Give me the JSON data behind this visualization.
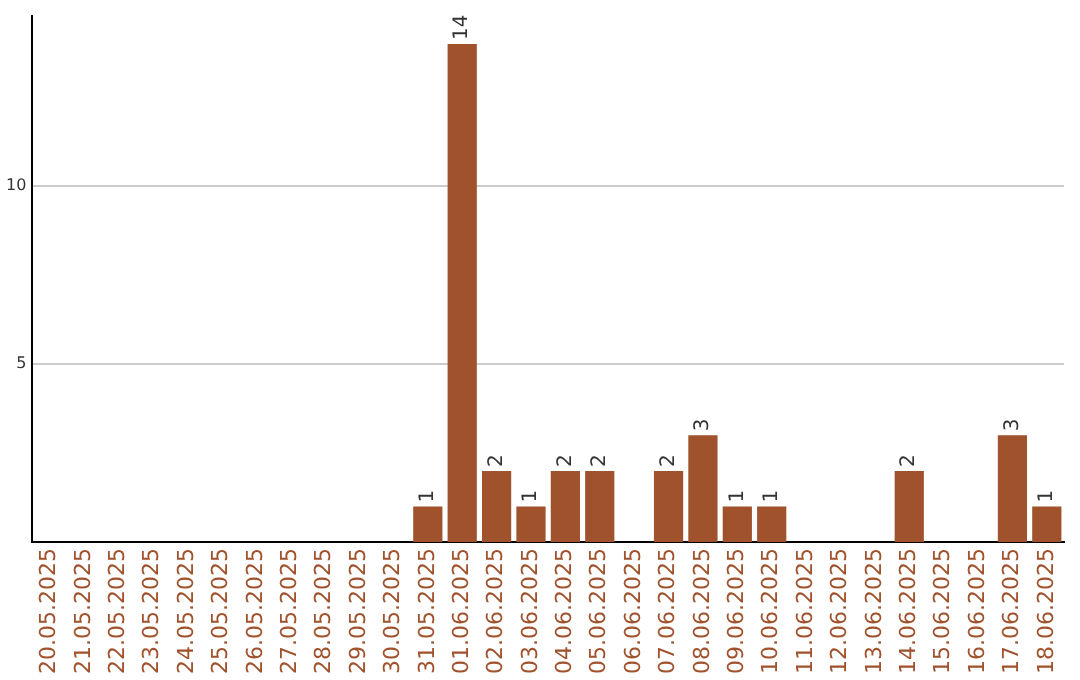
{
  "chart_data": {
    "type": "bar",
    "categories": [
      "20.05.2025",
      "21.05.2025",
      "22.05.2025",
      "23.05.2025",
      "24.05.2025",
      "25.05.2025",
      "26.05.2025",
      "27.05.2025",
      "28.05.2025",
      "29.05.2025",
      "30.05.2025",
      "31.05.2025",
      "01.06.2025",
      "02.06.2025",
      "03.06.2025",
      "04.06.2025",
      "05.06.2025",
      "06.06.2025",
      "07.06.2025",
      "08.06.2025",
      "09.06.2025",
      "10.06.2025",
      "11.06.2025",
      "12.06.2025",
      "13.06.2025",
      "14.06.2025",
      "15.06.2025",
      "16.06.2025",
      "17.06.2025",
      "18.06.2025"
    ],
    "values": [
      0,
      0,
      0,
      0,
      0,
      0,
      0,
      0,
      0,
      0,
      0,
      1,
      14,
      2,
      1,
      2,
      2,
      0,
      2,
      3,
      1,
      1,
      0,
      0,
      0,
      2,
      0,
      0,
      3,
      1
    ],
    "value_labels": [
      null,
      null,
      null,
      null,
      null,
      null,
      null,
      null,
      null,
      null,
      null,
      "1",
      "14",
      "2",
      "1",
      "2",
      "2",
      null,
      "2",
      "3",
      "1",
      "1",
      null,
      null,
      null,
      "2",
      null,
      null,
      "3",
      "1"
    ],
    "color": "#a0522d",
    "ylim": [
      0,
      14.8
    ],
    "yticks": [
      5,
      10
    ],
    "grid": "y",
    "legend": false
  }
}
